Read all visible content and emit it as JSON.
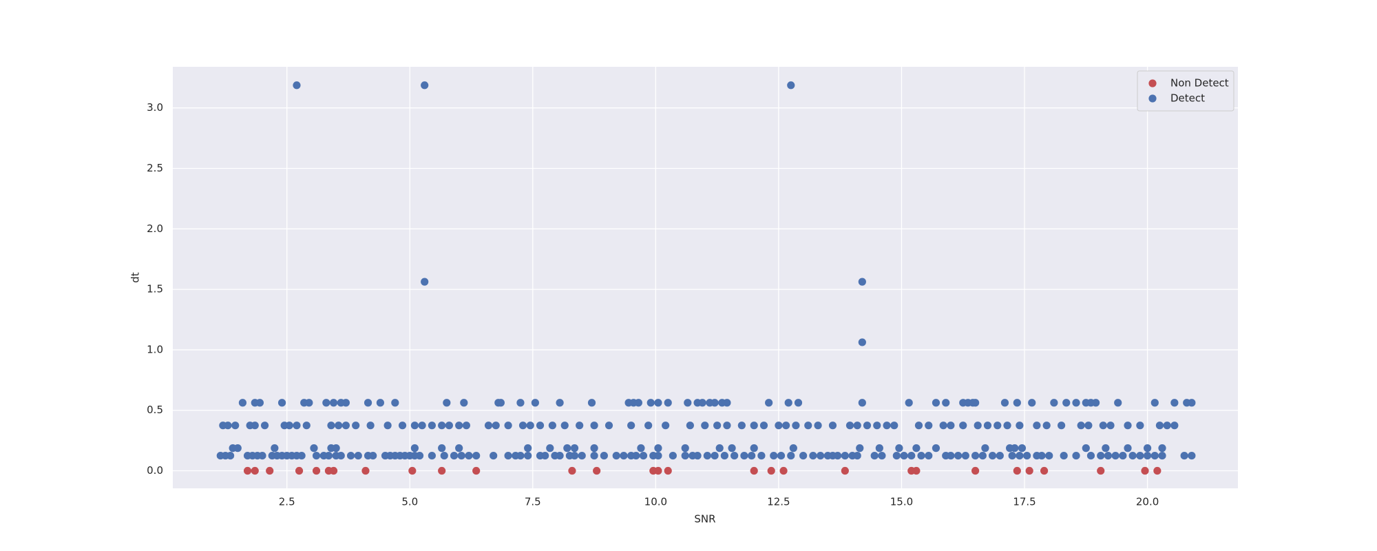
{
  "chart_data": {
    "type": "scatter",
    "xlabel": "SNR",
    "ylabel": "dt",
    "xlim": [
      0.18,
      21.84
    ],
    "ylim": [
      -0.145,
      3.34
    ],
    "xticks": [
      2.5,
      {
        "value": 5,
        "label": "5.0"
      },
      7.5,
      {
        "value": 10,
        "label": "10.0"
      },
      12.5,
      {
        "value": 15,
        "label": "15.0"
      },
      17.5,
      {
        "value": 20,
        "label": "20.0"
      }
    ],
    "yticks": [
      {
        "value": 0,
        "label": "0.0"
      },
      0.5,
      {
        "value": 1,
        "label": "1.0"
      },
      1.5,
      {
        "value": 2,
        "label": "2.0"
      },
      2.5,
      {
        "value": 3,
        "label": "3.0"
      }
    ],
    "grid": true,
    "legend": "upper right",
    "series": [
      {
        "name": "Non Detect",
        "color": "#c44e52",
        "x": [
          1.7,
          1.85,
          2.15,
          2.75,
          3.1,
          3.35,
          3.45,
          4.1,
          5.05,
          5.65,
          6.35,
          8.3,
          8.8,
          9.95,
          10.05,
          10.25,
          12.0,
          12.35,
          12.6,
          13.85,
          15.2,
          15.3,
          16.5,
          17.35,
          17.6,
          17.9,
          19.05,
          19.95,
          20.2
        ],
        "values": [
          0,
          0,
          0,
          0,
          0,
          0,
          0,
          0,
          0,
          0,
          0,
          0,
          0,
          0,
          0,
          0,
          0,
          0,
          0,
          0,
          0,
          0,
          0,
          0,
          0,
          0,
          0,
          0,
          0
        ]
      },
      {
        "name": "Detect",
        "color": "#4c72b0",
        "x": [
          2.7,
          5.3,
          12.75,
          5.3,
          14.2,
          14.2,
          1.6,
          1.85,
          1.95,
          2.4,
          2.85,
          2.95,
          3.3,
          3.45,
          3.6,
          3.7,
          4.15,
          4.4,
          4.7,
          5.75,
          6.1,
          6.8,
          6.85,
          7.25,
          7.55,
          8.05,
          8.7,
          9.45,
          9.55,
          9.65,
          9.9,
          10.05,
          10.25,
          10.65,
          10.85,
          10.95,
          11.1,
          11.2,
          11.35,
          11.45,
          12.3,
          12.7,
          12.9,
          14.2,
          15.15,
          15.7,
          15.9,
          16.25,
          16.35,
          16.45,
          16.5,
          17.1,
          17.35,
          17.65,
          18.1,
          18.35,
          18.55,
          18.75,
          18.85,
          18.95,
          19.4,
          20.15,
          20.55,
          20.8,
          20.9,
          1.2,
          1.3,
          1.45,
          1.75,
          1.85,
          2.05,
          2.45,
          2.55,
          2.7,
          2.9,
          3.4,
          3.55,
          3.7,
          3.9,
          4.2,
          4.55,
          4.85,
          5.1,
          5.25,
          5.45,
          5.65,
          5.8,
          6.0,
          6.15,
          6.6,
          6.75,
          7.0,
          7.3,
          7.45,
          7.65,
          7.9,
          8.15,
          8.45,
          8.75,
          9.05,
          9.5,
          9.85,
          10.2,
          10.7,
          11.0,
          11.25,
          11.45,
          11.75,
          12.0,
          12.2,
          12.5,
          12.65,
          12.85,
          13.1,
          13.3,
          13.6,
          13.95,
          14.1,
          14.3,
          14.5,
          14.7,
          14.85,
          15.35,
          15.55,
          15.85,
          16.0,
          16.25,
          16.55,
          16.75,
          16.95,
          17.15,
          17.4,
          17.75,
          17.95,
          18.25,
          18.65,
          18.8,
          19.1,
          19.25,
          19.6,
          19.85,
          20.25,
          20.4,
          20.55,
          1.4,
          1.5,
          2.25,
          3.05,
          3.4,
          3.5,
          5.1,
          5.65,
          6.0,
          7.4,
          7.85,
          8.2,
          8.35,
          8.75,
          9.7,
          10.05,
          10.6,
          11.3,
          11.55,
          12.0,
          12.8,
          14.15,
          14.55,
          14.95,
          15.3,
          15.7,
          16.7,
          17.2,
          17.3,
          17.45,
          18.75,
          19.15,
          19.6,
          20.0,
          20.3,
          1.15,
          1.25,
          1.35,
          1.7,
          1.8,
          1.9,
          2.0,
          2.2,
          2.3,
          2.4,
          2.5,
          2.6,
          2.7,
          2.8,
          3.1,
          3.25,
          3.35,
          3.5,
          3.6,
          3.8,
          3.95,
          4.15,
          4.25,
          4.5,
          4.6,
          4.7,
          4.8,
          4.9,
          5.0,
          5.1,
          5.2,
          5.45,
          5.7,
          5.9,
          6.05,
          6.2,
          6.35,
          6.7,
          7.0,
          7.15,
          7.25,
          7.4,
          7.65,
          7.75,
          7.95,
          8.05,
          8.25,
          8.35,
          8.5,
          8.75,
          8.95,
          9.2,
          9.35,
          9.5,
          9.6,
          9.75,
          9.95,
          10.05,
          10.35,
          10.6,
          10.75,
          10.85,
          11.05,
          11.2,
          11.4,
          11.6,
          11.8,
          11.95,
          12.15,
          12.4,
          12.55,
          12.75,
          13.0,
          13.2,
          13.35,
          13.5,
          13.6,
          13.7,
          13.85,
          14.0,
          14.1,
          14.45,
          14.6,
          14.9,
          15.05,
          15.2,
          15.4,
          15.55,
          15.9,
          16.0,
          16.15,
          16.3,
          16.5,
          16.65,
          16.85,
          17.0,
          17.25,
          17.4,
          17.55,
          17.75,
          17.85,
          18.0,
          18.3,
          18.55,
          18.85,
          19.05,
          19.2,
          19.35,
          19.5,
          19.7,
          19.85,
          20.0,
          20.15,
          20.3,
          20.75,
          20.9
        ],
        "values": [
          3.1875,
          3.1875,
          3.1875,
          1.5625,
          1.5625,
          1.0625,
          0.5625,
          0.5625,
          0.5625,
          0.5625,
          0.5625,
          0.5625,
          0.5625,
          0.5625,
          0.5625,
          0.5625,
          0.5625,
          0.5625,
          0.5625,
          0.5625,
          0.5625,
          0.5625,
          0.5625,
          0.5625,
          0.5625,
          0.5625,
          0.5625,
          0.5625,
          0.5625,
          0.5625,
          0.5625,
          0.5625,
          0.5625,
          0.5625,
          0.5625,
          0.5625,
          0.5625,
          0.5625,
          0.5625,
          0.5625,
          0.5625,
          0.5625,
          0.5625,
          0.5625,
          0.5625,
          0.5625,
          0.5625,
          0.5625,
          0.5625,
          0.5625,
          0.5625,
          0.5625,
          0.5625,
          0.5625,
          0.5625,
          0.5625,
          0.5625,
          0.5625,
          0.5625,
          0.5625,
          0.5625,
          0.5625,
          0.5625,
          0.5625,
          0.5625,
          0.375,
          0.375,
          0.375,
          0.375,
          0.375,
          0.375,
          0.375,
          0.375,
          0.375,
          0.375,
          0.375,
          0.375,
          0.375,
          0.375,
          0.375,
          0.375,
          0.375,
          0.375,
          0.375,
          0.375,
          0.375,
          0.375,
          0.375,
          0.375,
          0.375,
          0.375,
          0.375,
          0.375,
          0.375,
          0.375,
          0.375,
          0.375,
          0.375,
          0.375,
          0.375,
          0.375,
          0.375,
          0.375,
          0.375,
          0.375,
          0.375,
          0.375,
          0.375,
          0.375,
          0.375,
          0.375,
          0.375,
          0.375,
          0.375,
          0.375,
          0.375,
          0.375,
          0.375,
          0.375,
          0.375,
          0.375,
          0.375,
          0.375,
          0.375,
          0.375,
          0.375,
          0.375,
          0.375,
          0.375,
          0.375,
          0.375,
          0.375,
          0.375,
          0.375,
          0.375,
          0.375,
          0.375,
          0.375,
          0.375,
          0.375,
          0.375,
          0.375,
          0.375,
          0.375,
          0.1875,
          0.1875,
          0.1875,
          0.1875,
          0.1875,
          0.1875,
          0.1875,
          0.1875,
          0.1875,
          0.1875,
          0.1875,
          0.1875,
          0.1875,
          0.1875,
          0.1875,
          0.1875,
          0.1875,
          0.1875,
          0.1875,
          0.1875,
          0.1875,
          0.1875,
          0.1875,
          0.1875,
          0.1875,
          0.1875,
          0.1875,
          0.1875,
          0.1875,
          0.1875,
          0.1875,
          0.1875,
          0.1875,
          0.1875,
          0.1875,
          0.125,
          0.125,
          0.125,
          0.125,
          0.125,
          0.125,
          0.125,
          0.125,
          0.125,
          0.125,
          0.125,
          0.125,
          0.125,
          0.125,
          0.125,
          0.125,
          0.125,
          0.125,
          0.125,
          0.125,
          0.125,
          0.125,
          0.125,
          0.125,
          0.125,
          0.125,
          0.125,
          0.125,
          0.125,
          0.125,
          0.125,
          0.125,
          0.125,
          0.125,
          0.125,
          0.125,
          0.125,
          0.125,
          0.125,
          0.125,
          0.125,
          0.125,
          0.125,
          0.125,
          0.125,
          0.125,
          0.125,
          0.125,
          0.125,
          0.125,
          0.125,
          0.125,
          0.125,
          0.125,
          0.125,
          0.125,
          0.125,
          0.125,
          0.125,
          0.125,
          0.125,
          0.125,
          0.125,
          0.125,
          0.125,
          0.125,
          0.125,
          0.125,
          0.125,
          0.125,
          0.125,
          0.125,
          0.125,
          0.125,
          0.125,
          0.125,
          0.125,
          0.125,
          0.125,
          0.125,
          0.125,
          0.125,
          0.125,
          0.125,
          0.125,
          0.125,
          0.125,
          0.125,
          0.125,
          0.125,
          0.125,
          0.125,
          0.125,
          0.125,
          0.125,
          0.125,
          0.125,
          0.125,
          0.125,
          0.125,
          0.125,
          0.125,
          0.125,
          0.125,
          0.125,
          0.125,
          0.125,
          0.125,
          0.125,
          0.125,
          0.125,
          0.125,
          0.125,
          0.125,
          0.125,
          0.125
        ]
      }
    ]
  }
}
